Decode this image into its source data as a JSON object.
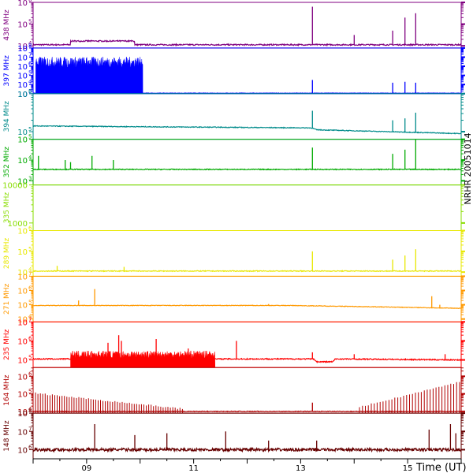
{
  "chart_data": {
    "type": "line",
    "station_label": "NRHR 20051014",
    "xlabel": "Time (UT)",
    "xlim": [
      8.0,
      16.0
    ],
    "x_ticks": [
      {
        "value": 9,
        "label": "09"
      },
      {
        "value": 11,
        "label": "11"
      },
      {
        "value": 13,
        "label": "13"
      },
      {
        "value": 15,
        "label": "15"
      }
    ],
    "common_spikes": [
      13.2,
      14.0,
      14.7,
      14.9,
      15.1
    ],
    "panels": [
      {
        "name": "438 MHz",
        "color": "#800080",
        "ymin": 3.9,
        "ymax": 6.0,
        "ticks": [
          {
            "exp": 4,
            "label": "10"
          },
          {
            "exp": 5,
            "label": "10"
          },
          {
            "exp": 6,
            "label": "10"
          }
        ],
        "baseline": 4.05,
        "noise": 0.03,
        "bumps": [
          {
            "from": 8.7,
            "to": 9.9,
            "level": 4.22
          }
        ],
        "spikes": [
          [
            13.22,
            5.8
          ],
          [
            14.0,
            4.5
          ],
          [
            14.72,
            4.7
          ],
          [
            14.95,
            5.3
          ],
          [
            15.15,
            5.5
          ]
        ],
        "data_end": 16.0
      },
      {
        "name": "397 MHz",
        "color": "#0000ff",
        "ymin": 3.0,
        "ymax": 8.0,
        "ticks": [
          {
            "exp": 3,
            "label": "10"
          },
          {
            "exp": 4,
            "label": "10"
          },
          {
            "exp": 5,
            "label": "10"
          },
          {
            "exp": 6,
            "label": "10"
          },
          {
            "exp": 7,
            "label": "10"
          },
          {
            "exp": 8,
            "label": "10"
          }
        ],
        "baseline": 3.05,
        "noise": 0.02,
        "bursts": [
          {
            "from": 8.05,
            "to": 10.05,
            "level": 6.2,
            "amp": 1.2
          }
        ],
        "spikes": [
          [
            13.22,
            4.5
          ],
          [
            14.72,
            4.2
          ],
          [
            14.95,
            4.3
          ],
          [
            15.15,
            4.2
          ]
        ],
        "data_end": 16.0
      },
      {
        "name": "394 MHz",
        "color": "#008b8b",
        "ymin": 4.8,
        "ymax": 6.0,
        "ticks": [
          {
            "exp": 5,
            "label": "10"
          },
          {
            "exp": 6,
            "label": "10"
          }
        ],
        "trend": [
          [
            8.0,
            5.15
          ],
          [
            13.2,
            5.1
          ],
          [
            13.3,
            5.05
          ],
          [
            16.0,
            4.95
          ]
        ],
        "noise": 0.01,
        "spikes": [
          [
            13.22,
            5.55
          ],
          [
            14.72,
            5.3
          ],
          [
            14.95,
            5.35
          ],
          [
            15.15,
            5.5
          ]
        ],
        "data_end": 16.0
      },
      {
        "name": "352 MHz",
        "color": "#00aa00",
        "ymin": 2.8,
        "ymax": 5.0,
        "ticks": [
          {
            "exp": 3,
            "label": "10"
          },
          {
            "exp": 4,
            "label": "10"
          },
          {
            "exp": 5,
            "label": "10"
          }
        ],
        "baseline": 3.55,
        "noise": 0.02,
        "spikes": [
          [
            8.1,
            4.2
          ],
          [
            8.6,
            4.0
          ],
          [
            8.7,
            3.9
          ],
          [
            9.1,
            4.2
          ],
          [
            9.5,
            4.0
          ],
          [
            13.22,
            4.6
          ],
          [
            14.72,
            4.3
          ],
          [
            14.95,
            4.5
          ],
          [
            15.15,
            5.0
          ]
        ],
        "data_end": 16.0
      },
      {
        "name": "335 MHz",
        "color": "#88dd00",
        "ymin": 2.8,
        "ymax": 4.0,
        "ticks": [
          {
            "exp": 3,
            "label": "1000"
          },
          {
            "exp": 4,
            "label": "10000"
          }
        ],
        "empty": true
      },
      {
        "name": "289 MHz",
        "color": "#e8e800",
        "ymin": 3.8,
        "ymax": 6.0,
        "ticks": [
          {
            "exp": 4,
            "label": "10"
          },
          {
            "exp": 5,
            "label": "10"
          },
          {
            "exp": 6,
            "label": "10"
          }
        ],
        "baseline": 4.05,
        "noise": 0.02,
        "spikes": [
          [
            8.45,
            4.3
          ],
          [
            9.7,
            4.25
          ],
          [
            13.22,
            5.0
          ],
          [
            14.72,
            4.6
          ],
          [
            14.95,
            4.8
          ],
          [
            15.15,
            5.1
          ]
        ],
        "data_end": 16.0
      },
      {
        "name": "271 MHz",
        "color": "#ff9900",
        "ymin": 3.8,
        "ymax": 7.0,
        "ticks": [
          {
            "exp": 4,
            "label": "10"
          },
          {
            "exp": 5,
            "label": "10"
          },
          {
            "exp": 6,
            "label": "10"
          },
          {
            "exp": 7,
            "label": "10"
          }
        ],
        "trend": [
          [
            8.0,
            4.95
          ],
          [
            12.8,
            4.95
          ],
          [
            14.5,
            4.85
          ],
          [
            16.0,
            4.75
          ]
        ],
        "noise": 0.02,
        "spikes": [
          [
            8.85,
            5.3
          ],
          [
            9.15,
            6.1
          ],
          [
            12.4,
            5.05
          ],
          [
            15.45,
            5.6
          ],
          [
            15.6,
            5.0
          ]
        ],
        "data_end": 16.0
      },
      {
        "name": "235 MHz",
        "color": "#ff0000",
        "ymin": 4.6,
        "ymax": 7.0,
        "ticks": [
          {
            "exp": 5,
            "label": "10"
          },
          {
            "exp": 6,
            "label": "10"
          },
          {
            "exp": 7,
            "label": "10"
          }
        ],
        "trend": [
          [
            8.0,
            5.05
          ],
          [
            13.25,
            5.05
          ],
          [
            13.3,
            4.9
          ],
          [
            13.6,
            4.9
          ],
          [
            13.65,
            5.05
          ],
          [
            16.0,
            5.0
          ]
        ],
        "noise": 0.03,
        "bursts": [
          {
            "from": 8.7,
            "to": 11.4,
            "level": 5.2,
            "amp": 0.4
          }
        ],
        "spikes": [
          [
            9.4,
            5.9
          ],
          [
            9.6,
            6.3
          ],
          [
            9.65,
            6.0
          ],
          [
            10.3,
            6.1
          ],
          [
            10.9,
            5.6
          ],
          [
            11.8,
            6.0
          ],
          [
            13.22,
            5.4
          ],
          [
            14.0,
            5.3
          ],
          [
            15.7,
            5.3
          ]
        ],
        "data_end": 16.0
      },
      {
        "name": "164 MHz",
        "color": "#b00000",
        "ymin": 3.9,
        "ymax": 6.5,
        "ticks": [
          {
            "exp": 4,
            "label": "10"
          },
          {
            "exp": 5,
            "label": "10"
          },
          {
            "exp": 6,
            "label": "10"
          }
        ],
        "baseline": 4.0,
        "noise": 0.02,
        "comb": [
          {
            "from": 8.0,
            "to": 10.8,
            "start": 5.05,
            "end": 4.15,
            "step": 0.045
          },
          {
            "from": 14.1,
            "to": 16.0,
            "start": 4.25,
            "end": 5.7,
            "step": 0.055
          }
        ],
        "spikes": [
          [
            13.22,
            4.5
          ]
        ],
        "data_end": 16.0
      },
      {
        "name": "148 MHz",
        "color": "#660000",
        "ymin": 5.5,
        "ymax": 8.0,
        "ticks": [
          {
            "exp": 6,
            "label": "10"
          },
          {
            "exp": 7,
            "label": "10"
          },
          {
            "exp": 8,
            "label": "10"
          }
        ],
        "baseline": 6.0,
        "noise": 0.08,
        "spikes": [
          [
            9.15,
            7.4
          ],
          [
            9.9,
            6.8
          ],
          [
            10.5,
            6.9
          ],
          [
            11.6,
            7.0
          ],
          [
            12.4,
            6.5
          ],
          [
            13.3,
            6.5
          ],
          [
            15.4,
            7.1
          ],
          [
            15.8,
            7.4
          ],
          [
            15.9,
            6.9
          ]
        ],
        "data_end": 16.0
      }
    ]
  }
}
